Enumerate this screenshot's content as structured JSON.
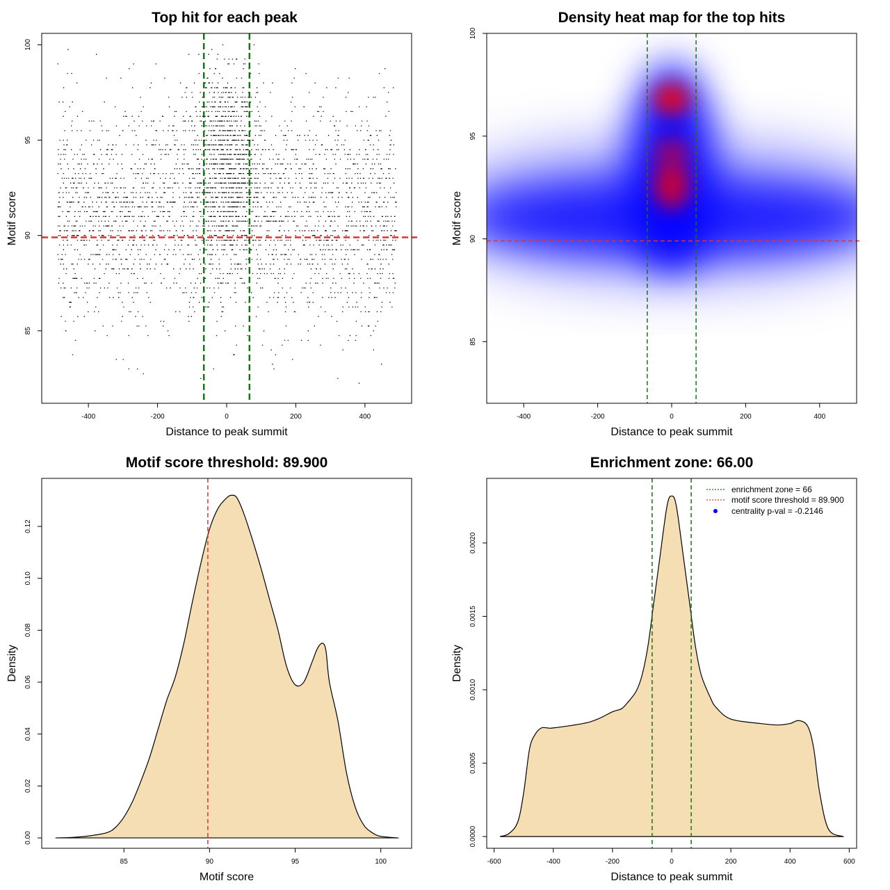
{
  "colors": {
    "threshold": "#e03030",
    "zone": "#117711",
    "fill": "#f5deb3",
    "stroke": "#000000",
    "heat_low": "#ffffff",
    "heat_mid": "#0000ff",
    "heat_high": "#ff0000",
    "legend_dot": "#0000ff"
  },
  "chart_data": [
    {
      "type": "scatter",
      "title": "Top hit for each peak",
      "xlabel": "Distance to peak summit",
      "ylabel": "Motif score",
      "xlim": [
        -535,
        535
      ],
      "ylim": [
        81.2,
        100.6
      ],
      "xticks": [
        -400,
        -200,
        0,
        200,
        400
      ],
      "yticks": [
        85,
        90,
        95,
        100
      ],
      "threshold": 89.9,
      "zone": [
        -66,
        66
      ],
      "x_range": [
        -490,
        490
      ],
      "y_range": [
        82,
        100
      ]
    },
    {
      "type": "heatmap",
      "title": "Density heat map for the top hits",
      "xlabel": "Distance to peak summit",
      "ylabel": "Motif score",
      "xlim": [
        -500,
        500
      ],
      "ylim": [
        82,
        100
      ],
      "xticks": [
        -400,
        -200,
        0,
        200,
        400
      ],
      "yticks": [
        85,
        90,
        95,
        100
      ],
      "threshold": 89.9,
      "zone": [
        -66,
        66
      ],
      "hotspots": [
        {
          "x": 0,
          "y": 96.8,
          "intensity": 1.0
        },
        {
          "x": 0,
          "y": 92.6,
          "intensity": 0.85
        },
        {
          "x": 0,
          "y": 94.2,
          "intensity": 0.6
        }
      ]
    },
    {
      "type": "area",
      "title": "Motif score threshold: 89.900",
      "xlabel": "Motif score",
      "ylabel": "Density",
      "xlim": [
        80.2,
        101.8
      ],
      "ylim": [
        -0.004,
        0.1385
      ],
      "xticks": [
        85,
        90,
        95,
        100
      ],
      "yticks": [
        0.0,
        0.02,
        0.04,
        0.06,
        0.08,
        0.1,
        0.12
      ],
      "ytick_labels": [
        "0.00",
        "0.02",
        "0.04",
        "0.06",
        "0.08",
        "0.10",
        "0.12"
      ],
      "threshold": 89.9,
      "x": [
        81,
        82,
        83,
        84,
        84.5,
        85,
        85.5,
        86,
        86.5,
        87,
        87.5,
        88,
        88.5,
        89,
        89.5,
        90,
        90.5,
        91,
        91.3,
        91.6,
        92,
        92.5,
        93,
        93.5,
        94,
        94.5,
        95,
        95.5,
        96,
        96.3,
        96.6,
        96.8,
        97,
        97.5,
        98,
        98.5,
        99,
        99.5,
        100,
        101
      ],
      "y": [
        0.0,
        0.0002,
        0.0008,
        0.002,
        0.004,
        0.008,
        0.014,
        0.022,
        0.031,
        0.042,
        0.053,
        0.062,
        0.075,
        0.091,
        0.106,
        0.119,
        0.127,
        0.131,
        0.132,
        0.131,
        0.125,
        0.115,
        0.104,
        0.092,
        0.08,
        0.066,
        0.059,
        0.06,
        0.068,
        0.073,
        0.075,
        0.072,
        0.06,
        0.045,
        0.025,
        0.012,
        0.005,
        0.002,
        0.0006,
        0.0
      ]
    },
    {
      "type": "area",
      "title": "Enrichment zone: 66.00",
      "xlabel": "Distance to peak summit",
      "ylabel": "Density",
      "xlim": [
        -625,
        625
      ],
      "ylim": [
        -8e-05,
        0.00244
      ],
      "xticks": [
        -600,
        -400,
        -200,
        0,
        200,
        400,
        600
      ],
      "yticks": [
        0.0,
        0.0005,
        0.001,
        0.0015,
        0.002
      ],
      "ytick_labels": [
        "0.0000",
        "0.0005",
        "0.0010",
        "0.0015",
        "0.0020"
      ],
      "zone": [
        -66,
        66
      ],
      "x": [
        -580,
        -550,
        -520,
        -500,
        -480,
        -460,
        -440,
        -420,
        -400,
        -300,
        -250,
        -200,
        -170,
        -150,
        -120,
        -100,
        -80,
        -60,
        -40,
        -20,
        -10,
        0,
        10,
        20,
        40,
        60,
        80,
        100,
        130,
        150,
        200,
        300,
        360,
        400,
        430,
        460,
        480,
        500,
        530,
        580
      ],
      "y": [
        0.0,
        2e-05,
        0.0001,
        0.0003,
        0.0006,
        0.0007,
        0.00074,
        0.00074,
        0.00074,
        0.00077,
        0.0008,
        0.00085,
        0.00087,
        0.00091,
        0.00099,
        0.0011,
        0.0013,
        0.0016,
        0.0019,
        0.0022,
        0.0023,
        0.00232,
        0.0023,
        0.0022,
        0.0019,
        0.0016,
        0.0013,
        0.0011,
        0.00095,
        0.00088,
        0.0008,
        0.00077,
        0.00076,
        0.00077,
        0.00079,
        0.00075,
        0.0006,
        0.0003,
        5e-05,
        0.0
      ]
    }
  ],
  "legend": {
    "items": [
      {
        "label": "enrichment zone = 66",
        "color": "#117711",
        "kind": "dotted-line"
      },
      {
        "label": "motif score threshold = 89.900",
        "color": "#e03030",
        "kind": "dotted-line"
      },
      {
        "label": "centrality p-val = -0.2146",
        "color": "#0000ff",
        "kind": "dot"
      }
    ]
  }
}
